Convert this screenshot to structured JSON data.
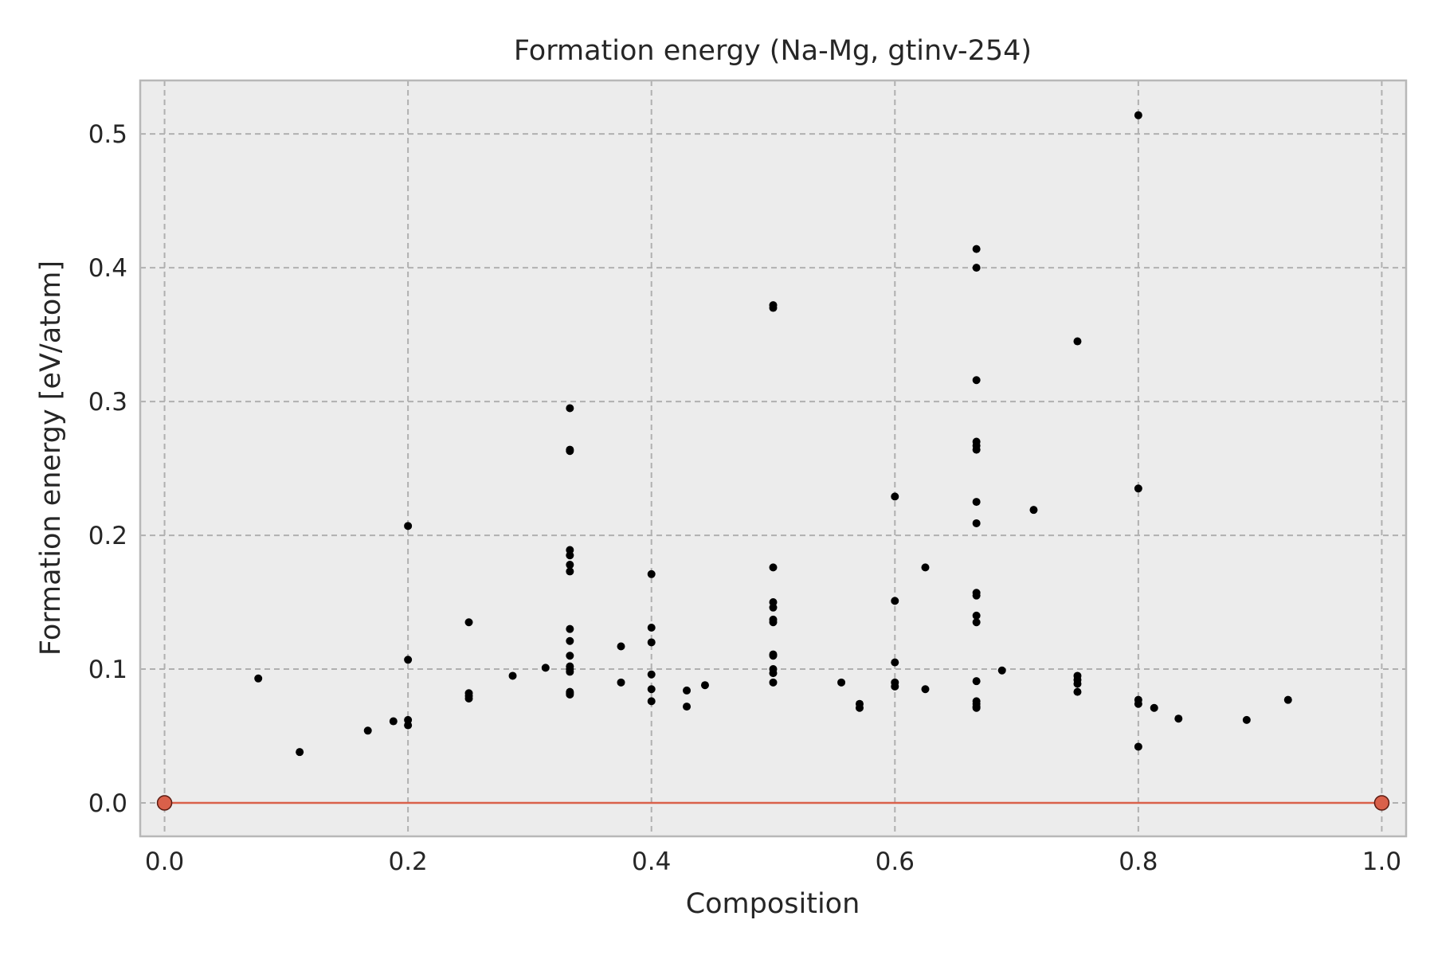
{
  "chart_data": {
    "type": "scatter",
    "title": "Formation energy (Na-Mg, gtinv-254)",
    "xlabel": "Composition",
    "ylabel": "Formation energy [eV/atom]",
    "xlim": [
      -0.02,
      1.02
    ],
    "ylim": [
      -0.025,
      0.54
    ],
    "xticks": [
      0.0,
      0.2,
      0.4,
      0.6,
      0.8,
      1.0
    ],
    "xtick_labels": [
      "0.0",
      "0.2",
      "0.4",
      "0.6",
      "0.8",
      "1.0"
    ],
    "yticks": [
      0.0,
      0.1,
      0.2,
      0.3,
      0.4,
      0.5
    ],
    "ytick_labels": [
      "0.0",
      "0.1",
      "0.2",
      "0.3",
      "0.4",
      "0.5"
    ],
    "grid": true,
    "colors": {
      "background": "#ececec",
      "grid": "#b0b0b0",
      "points": "#000000",
      "hull_line": "#d9604a",
      "hull_points": "#d9604a",
      "spine": "#b8b8b8"
    },
    "series": [
      {
        "kind": "scatter",
        "color": "#000000",
        "x": [
          0.077,
          0.111,
          0.167,
          0.188,
          0.2,
          0.2,
          0.2,
          0.2,
          0.25,
          0.25,
          0.25,
          0.25,
          0.286,
          0.313,
          0.333,
          0.333,
          0.333,
          0.333,
          0.333,
          0.333,
          0.333,
          0.333,
          0.333,
          0.333,
          0.333,
          0.333,
          0.333,
          0.333,
          0.333,
          0.333,
          0.375,
          0.375,
          0.4,
          0.4,
          0.4,
          0.4,
          0.4,
          0.4,
          0.429,
          0.429,
          0.444,
          0.5,
          0.5,
          0.5,
          0.5,
          0.5,
          0.5,
          0.5,
          0.5,
          0.5,
          0.5,
          0.5,
          0.5,
          0.556,
          0.571,
          0.571,
          0.6,
          0.6,
          0.6,
          0.6,
          0.6,
          0.625,
          0.625,
          0.667,
          0.667,
          0.667,
          0.667,
          0.667,
          0.667,
          0.667,
          0.667,
          0.667,
          0.667,
          0.667,
          0.667,
          0.667,
          0.667,
          0.667,
          0.667,
          0.667,
          0.688,
          0.714,
          0.75,
          0.75,
          0.75,
          0.75,
          0.75,
          0.8,
          0.8,
          0.8,
          0.8,
          0.8,
          0.813,
          0.833,
          0.889,
          0.923
        ],
        "y": [
          0.093,
          0.038,
          0.054,
          0.061,
          0.207,
          0.107,
          0.062,
          0.058,
          0.135,
          0.082,
          0.08,
          0.078,
          0.095,
          0.101,
          0.295,
          0.264,
          0.263,
          0.189,
          0.185,
          0.178,
          0.173,
          0.13,
          0.121,
          0.11,
          0.102,
          0.1,
          0.098,
          0.083,
          0.081,
          0.082,
          0.117,
          0.09,
          0.171,
          0.131,
          0.12,
          0.096,
          0.085,
          0.076,
          0.084,
          0.072,
          0.088,
          0.372,
          0.37,
          0.176,
          0.15,
          0.146,
          0.137,
          0.135,
          0.111,
          0.11,
          0.1,
          0.097,
          0.09,
          0.09,
          0.074,
          0.071,
          0.229,
          0.151,
          0.105,
          0.09,
          0.087,
          0.176,
          0.085,
          0.414,
          0.4,
          0.316,
          0.27,
          0.267,
          0.264,
          0.225,
          0.209,
          0.157,
          0.155,
          0.14,
          0.135,
          0.091,
          0.076,
          0.074,
          0.072,
          0.071,
          0.099,
          0.219,
          0.345,
          0.095,
          0.092,
          0.089,
          0.083,
          0.514,
          0.235,
          0.077,
          0.074,
          0.042,
          0.071,
          0.063,
          0.062,
          0.077
        ]
      },
      {
        "kind": "hull",
        "color": "#d9604a",
        "x": [
          0.0,
          1.0
        ],
        "y": [
          0.0,
          0.0
        ]
      }
    ]
  }
}
